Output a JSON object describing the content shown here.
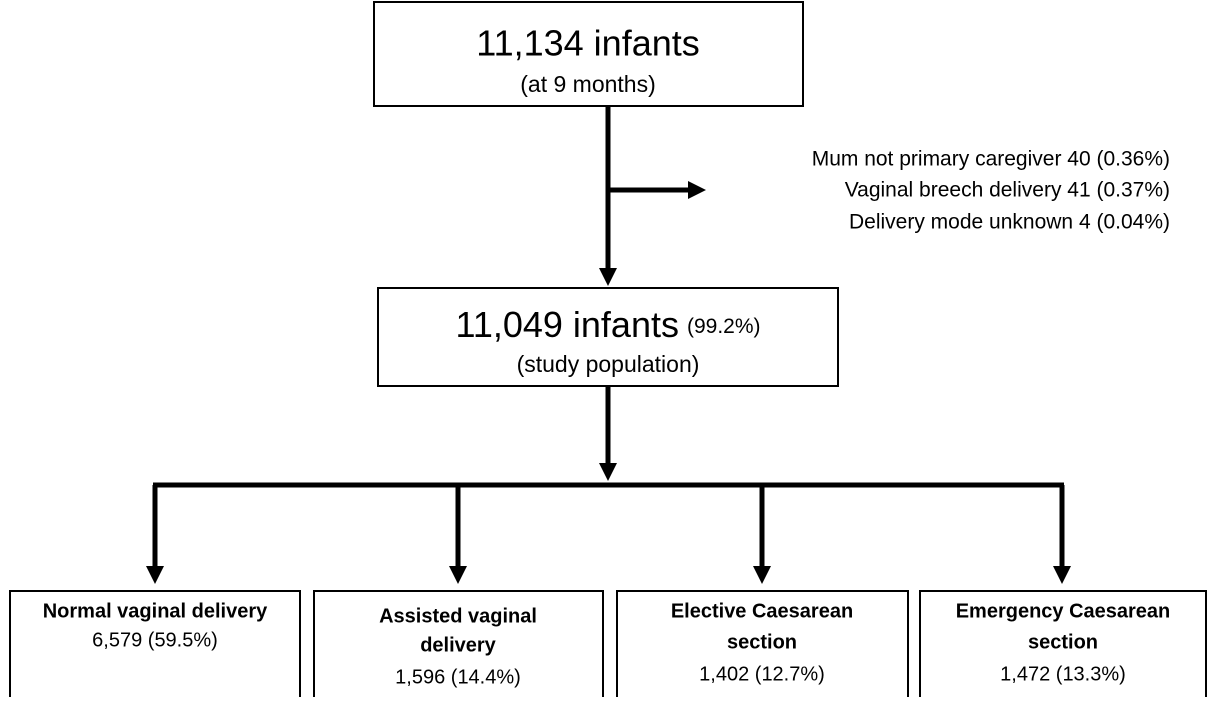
{
  "top": {
    "title": "11,134 infants",
    "subtitle": "(at 9 months)"
  },
  "exclusions": [
    "Mum not primary caregiver 40 (0.36%)",
    "Vaginal breech delivery 41 (0.37%)",
    "Delivery mode unknown 4 (0.04%)"
  ],
  "study": {
    "title": "11,049 infants",
    "percent": "(99.2%)",
    "subtitle": "(study population)"
  },
  "groups": [
    {
      "title": [
        "Normal vaginal delivery"
      ],
      "count": "6,579 (59.5%)"
    },
    {
      "title": [
        "Assisted vaginal",
        "delivery"
      ],
      "count": "1,596 (14.4%)"
    },
    {
      "title": [
        "Elective Caesarean",
        "section"
      ],
      "count": "1,402 (12.7%)"
    },
    {
      "title": [
        "Emergency Caesarean",
        "section"
      ],
      "count": "1,472 (13.3%)"
    }
  ]
}
